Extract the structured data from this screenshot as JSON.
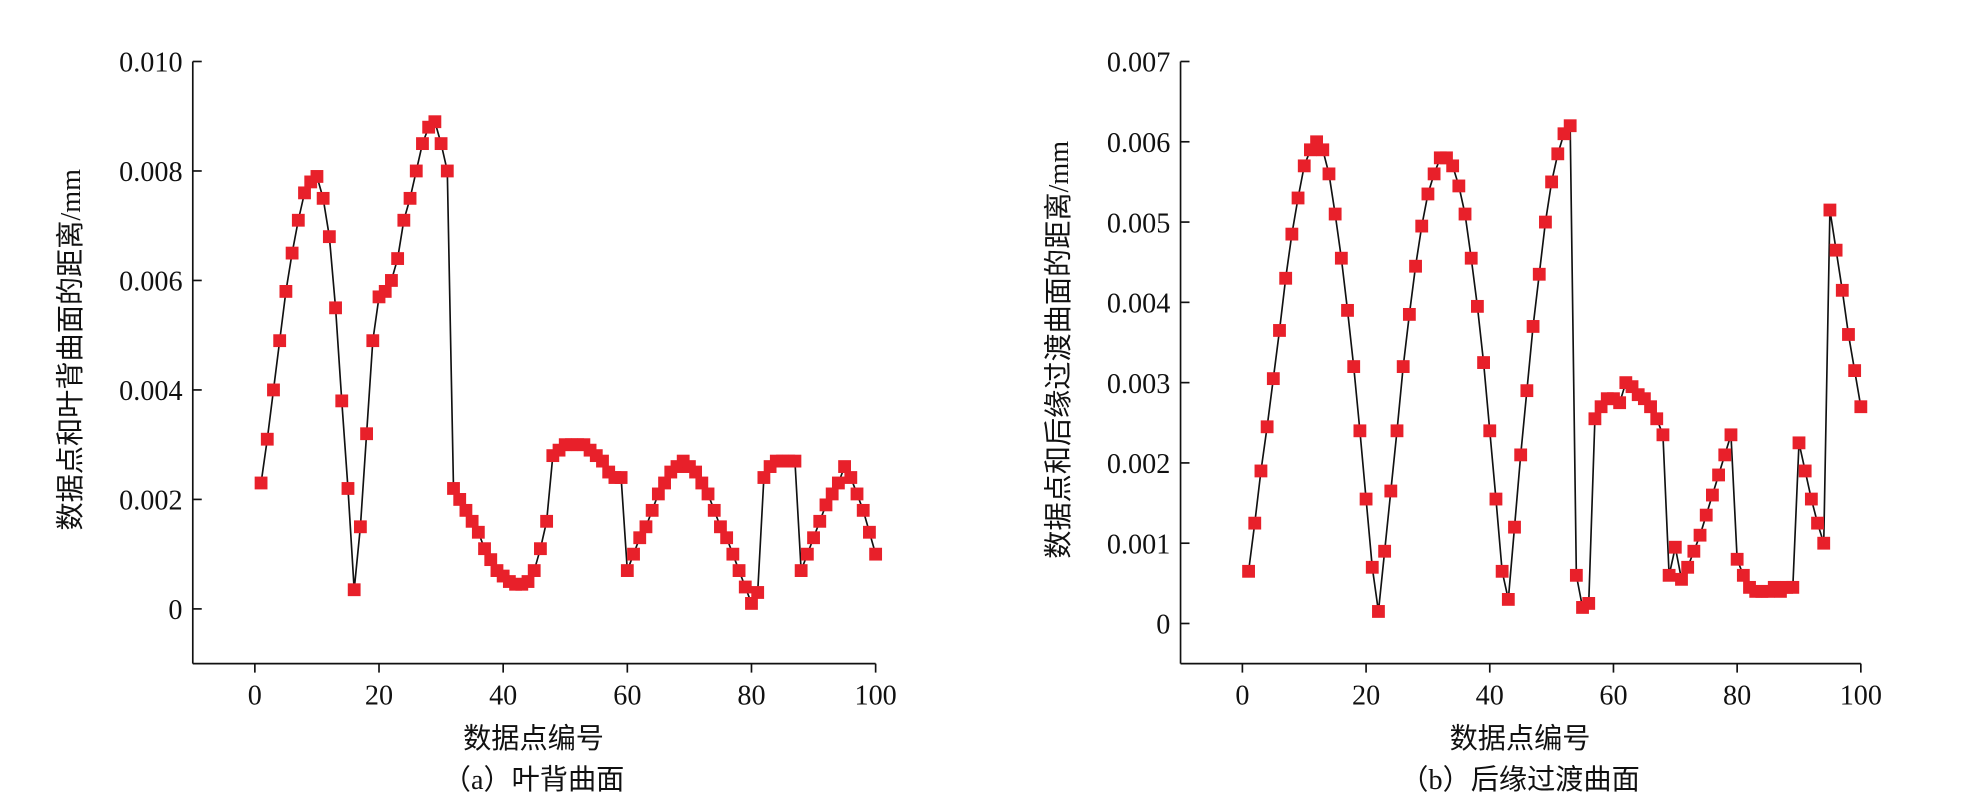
{
  "chart_data": [
    {
      "type": "line",
      "subtitle": "（a）叶背曲面",
      "xlabel": "数据点编号",
      "ylabel": "数据点和叶背曲面的距离/mm",
      "x": [
        1,
        2,
        3,
        4,
        5,
        6,
        7,
        8,
        9,
        10,
        11,
        12,
        13,
        14,
        15,
        16,
        17,
        18,
        19,
        20,
        21,
        22,
        23,
        24,
        25,
        26,
        27,
        28,
        29,
        30,
        31,
        32,
        33,
        34,
        35,
        36,
        37,
        38,
        39,
        40,
        41,
        42,
        43,
        44,
        45,
        46,
        47,
        48,
        49,
        50,
        51,
        52,
        53,
        54,
        55,
        56,
        57,
        58,
        59,
        60,
        61,
        62,
        63,
        64,
        65,
        66,
        67,
        68,
        69,
        70,
        71,
        72,
        73,
        74,
        75,
        76,
        77,
        78,
        79,
        80,
        81,
        82,
        83,
        84,
        85,
        86,
        87,
        88,
        89,
        90,
        91,
        92,
        93,
        94,
        95,
        96,
        97,
        98,
        99,
        100
      ],
      "values": [
        0.0023,
        0.0031,
        0.004,
        0.0049,
        0.0058,
        0.0065,
        0.0071,
        0.0076,
        0.0078,
        0.0079,
        0.0075,
        0.0068,
        0.0055,
        0.0038,
        0.0022,
        0.00035,
        0.0015,
        0.0032,
        0.0049,
        0.0057,
        0.0058,
        0.006,
        0.0064,
        0.0071,
        0.0075,
        0.008,
        0.0085,
        0.0088,
        0.0089,
        0.0085,
        0.008,
        0.0022,
        0.002,
        0.0018,
        0.0016,
        0.0014,
        0.0011,
        0.0009,
        0.0007,
        0.0006,
        0.0005,
        0.00045,
        0.00045,
        0.0005,
        0.0007,
        0.0011,
        0.0016,
        0.0028,
        0.0029,
        0.003,
        0.003,
        0.003,
        0.003,
        0.0029,
        0.0028,
        0.0027,
        0.0025,
        0.0024,
        0.0024,
        0.0007,
        0.001,
        0.0013,
        0.0015,
        0.0018,
        0.0021,
        0.0023,
        0.0025,
        0.0026,
        0.0027,
        0.0026,
        0.0025,
        0.0023,
        0.0021,
        0.0018,
        0.0015,
        0.0013,
        0.001,
        0.0007,
        0.0004,
        0.0001,
        0.0003,
        0.0024,
        0.0026,
        0.0027,
        0.0027,
        0.0027,
        0.0027,
        0.0007,
        0.001,
        0.0013,
        0.0016,
        0.0019,
        0.0021,
        0.0023,
        0.0026,
        0.0024,
        0.0021,
        0.0018,
        0.0014,
        0.001
      ],
      "color": "#e8202a",
      "line_color": "#111111",
      "xlim": [
        -10,
        100
      ],
      "xticks": [
        0,
        20,
        40,
        60,
        80,
        100
      ],
      "ylim": [
        -0.001,
        0.01
      ],
      "yticks": [
        0,
        0.002,
        0.004,
        0.006,
        0.008,
        {
          "value": 0.01,
          "label": "0.010"
        }
      ]
    },
    {
      "type": "line",
      "subtitle": "（b）后缘过渡曲面",
      "xlabel": "数据点编号",
      "ylabel": "数据点和后缘过渡曲面的距离/mm",
      "x": [
        1,
        2,
        3,
        4,
        5,
        6,
        7,
        8,
        9,
        10,
        11,
        12,
        13,
        14,
        15,
        16,
        17,
        18,
        19,
        20,
        21,
        22,
        23,
        24,
        25,
        26,
        27,
        28,
        29,
        30,
        31,
        32,
        33,
        34,
        35,
        36,
        37,
        38,
        39,
        40,
        41,
        42,
        43,
        44,
        45,
        46,
        47,
        48,
        49,
        50,
        51,
        52,
        53,
        54,
        55,
        56,
        57,
        58,
        59,
        60,
        61,
        62,
        63,
        64,
        65,
        66,
        67,
        68,
        69,
        70,
        71,
        72,
        73,
        74,
        75,
        76,
        77,
        78,
        79,
        80,
        81,
        82,
        83,
        84,
        85,
        86,
        87,
        88,
        89,
        90,
        91,
        92,
        93,
        94,
        95,
        96,
        97,
        98,
        99,
        100
      ],
      "values": [
        0.00065,
        0.00125,
        0.0019,
        0.00245,
        0.00305,
        0.00365,
        0.0043,
        0.00485,
        0.0053,
        0.0057,
        0.0059,
        0.006,
        0.0059,
        0.0056,
        0.0051,
        0.00455,
        0.0039,
        0.0032,
        0.0024,
        0.00155,
        0.0007,
        0.00015,
        0.0009,
        0.00165,
        0.0024,
        0.0032,
        0.00385,
        0.00445,
        0.00495,
        0.00535,
        0.0056,
        0.0058,
        0.0058,
        0.0057,
        0.00545,
        0.0051,
        0.00455,
        0.00395,
        0.00325,
        0.0024,
        0.00155,
        0.00065,
        0.0003,
        0.0012,
        0.0021,
        0.0029,
        0.0037,
        0.00435,
        0.005,
        0.0055,
        0.00585,
        0.0061,
        0.0062,
        0.0006,
        0.0002,
        0.00025,
        0.00255,
        0.0027,
        0.0028,
        0.0028,
        0.00275,
        0.003,
        0.00295,
        0.00285,
        0.0028,
        0.0027,
        0.00255,
        0.00235,
        0.0006,
        0.00095,
        0.00055,
        0.0007,
        0.0009,
        0.0011,
        0.00135,
        0.0016,
        0.00185,
        0.0021,
        0.00235,
        0.0008,
        0.0006,
        0.00045,
        0.0004,
        0.0004,
        0.0004,
        0.00045,
        0.0004,
        0.00045,
        0.00045,
        0.00225,
        0.0019,
        0.00155,
        0.00125,
        0.001,
        0.00515,
        0.00465,
        0.00415,
        0.0036,
        0.00315,
        0.0027
      ],
      "color": "#e8202a",
      "line_color": "#111111",
      "xlim": [
        -10,
        100
      ],
      "xticks": [
        0,
        20,
        40,
        60,
        80,
        100
      ],
      "ylim": [
        -0.0005,
        0.007
      ],
      "yticks": [
        0,
        0.001,
        0.002,
        0.003,
        0.004,
        0.005,
        0.006,
        0.007
      ]
    }
  ]
}
